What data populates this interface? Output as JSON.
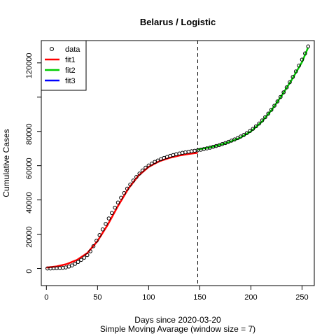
{
  "chart_data": {
    "type": "scatter",
    "title": "Belarus / Logistic",
    "xlabel": "Days since 2020-03-20",
    "subtitle": "Simple Moving Avarage (window size = 7)",
    "ylabel": "Cumulative Cases",
    "xlim": [
      -5,
      262
    ],
    "ylim": [
      -10000,
      133000
    ],
    "x_ticks": [
      0,
      50,
      100,
      150,
      200,
      250
    ],
    "y_ticks": [
      0,
      20000,
      40000,
      60000,
      80000,
      120000
    ],
    "y_extra_tick_marks": [
      100000
    ],
    "vline": {
      "x": 148,
      "style": "dashed"
    },
    "legend": {
      "position": "top-left",
      "entries": [
        {
          "label": "data",
          "kind": "point",
          "color": "#000000"
        },
        {
          "label": "fit1",
          "kind": "line",
          "color": "#ff0000"
        },
        {
          "label": "fit2",
          "kind": "line",
          "color": "#00cd00"
        },
        {
          "label": "fit3",
          "kind": "line",
          "color": "#0000ff"
        }
      ]
    },
    "series": [
      {
        "name": "data",
        "kind": "points",
        "color": "#000000",
        "points": [
          [
            1,
            0
          ],
          [
            4,
            0
          ],
          [
            7,
            100
          ],
          [
            10,
            150
          ],
          [
            13,
            250
          ],
          [
            16,
            350
          ],
          [
            19,
            600
          ],
          [
            22,
            1100
          ],
          [
            25,
            1800
          ],
          [
            28,
            2700
          ],
          [
            31,
            3800
          ],
          [
            34,
            5000
          ],
          [
            37,
            6300
          ],
          [
            40,
            7800
          ],
          [
            43,
            10000
          ],
          [
            46,
            13000
          ],
          [
            49,
            16200
          ],
          [
            52,
            19500
          ],
          [
            55,
            22800
          ],
          [
            58,
            26000
          ],
          [
            61,
            29200
          ],
          [
            64,
            32400
          ],
          [
            67,
            35500
          ],
          [
            70,
            38500
          ],
          [
            73,
            41300
          ],
          [
            76,
            44000
          ],
          [
            79,
            46600
          ],
          [
            82,
            49000
          ],
          [
            85,
            51300
          ],
          [
            88,
            53400
          ],
          [
            91,
            55400
          ],
          [
            94,
            57200
          ],
          [
            97,
            58800
          ],
          [
            100,
            60100
          ],
          [
            103,
            61200
          ],
          [
            106,
            62200
          ],
          [
            109,
            63000
          ],
          [
            112,
            63800
          ],
          [
            115,
            64500
          ],
          [
            118,
            65100
          ],
          [
            121,
            65700
          ],
          [
            124,
            66200
          ],
          [
            127,
            66700
          ],
          [
            130,
            67100
          ],
          [
            133,
            67500
          ],
          [
            136,
            67800
          ],
          [
            139,
            68100
          ],
          [
            142,
            68400
          ],
          [
            145,
            68700
          ],
          [
            148,
            69000
          ],
          [
            151,
            69300
          ],
          [
            154,
            69700
          ],
          [
            157,
            70100
          ],
          [
            160,
            70500
          ],
          [
            163,
            71000
          ],
          [
            166,
            71500
          ],
          [
            169,
            72000
          ],
          [
            172,
            72600
          ],
          [
            175,
            73200
          ],
          [
            178,
            73900
          ],
          [
            181,
            74600
          ],
          [
            184,
            75300
          ],
          [
            187,
            76100
          ],
          [
            190,
            77000
          ],
          [
            193,
            77900
          ],
          [
            196,
            79000
          ],
          [
            199,
            80200
          ],
          [
            202,
            81500
          ],
          [
            205,
            83000
          ],
          [
            208,
            84600
          ],
          [
            211,
            86400
          ],
          [
            214,
            88300
          ],
          [
            217,
            90400
          ],
          [
            220,
            92600
          ],
          [
            223,
            95000
          ],
          [
            226,
            97500
          ],
          [
            229,
            100100
          ],
          [
            232,
            102800
          ],
          [
            235,
            105700
          ],
          [
            238,
            108700
          ],
          [
            241,
            111800
          ],
          [
            244,
            115000
          ],
          [
            247,
            118400
          ],
          [
            250,
            121900
          ],
          [
            253,
            125500
          ],
          [
            256,
            129600
          ]
        ]
      },
      {
        "name": "fit1",
        "kind": "line",
        "color": "#ff0000",
        "points": [
          [
            0,
            500
          ],
          [
            10,
            1200
          ],
          [
            20,
            2600
          ],
          [
            30,
            5000
          ],
          [
            40,
            9000
          ],
          [
            50,
            16000
          ],
          [
            60,
            25500
          ],
          [
            70,
            36500
          ],
          [
            80,
            46500
          ],
          [
            90,
            54200
          ],
          [
            100,
            59300
          ],
          [
            110,
            62500
          ],
          [
            120,
            64500
          ],
          [
            130,
            65900
          ],
          [
            140,
            66900
          ],
          [
            148,
            67500
          ]
        ]
      },
      {
        "name": "fit2",
        "kind": "line",
        "color": "#00cd00",
        "points": [
          [
            148,
            69500
          ],
          [
            160,
            70700
          ],
          [
            170,
            72200
          ],
          [
            180,
            74000
          ],
          [
            190,
            76400
          ],
          [
            200,
            80000
          ],
          [
            210,
            85200
          ],
          [
            220,
            92300
          ],
          [
            230,
            100800
          ],
          [
            240,
            110200
          ],
          [
            250,
            120500
          ],
          [
            256,
            129000
          ]
        ]
      }
    ]
  }
}
